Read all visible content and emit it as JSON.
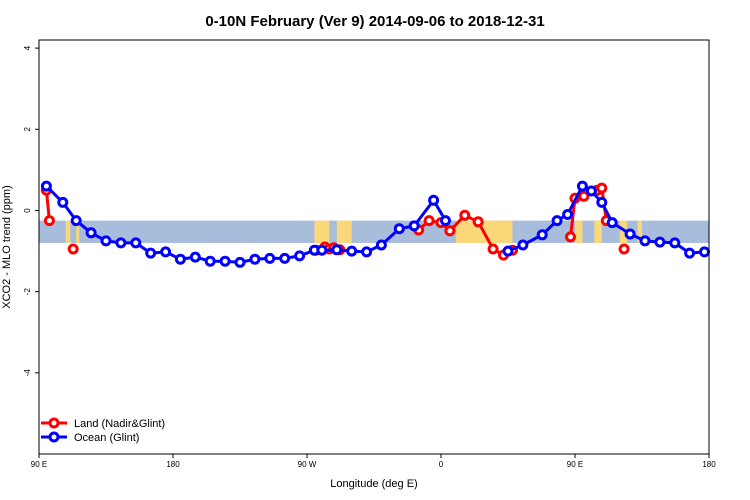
{
  "chart_data": {
    "type": "line",
    "title": "0-10N February (Ver 9)   2014-09-06 to 2018-12-31",
    "xlabel": "Longitude (deg E)",
    "ylabel": "XCO2 - MLO trend (ppm)",
    "x_ticks": [
      {
        "value": 90,
        "label": "90 E"
      },
      {
        "value": 180,
        "label": "180"
      },
      {
        "value": 270,
        "label": "90 W"
      },
      {
        "value": 360,
        "label": "0"
      },
      {
        "value": 450,
        "label": "90 E"
      },
      {
        "value": 540,
        "label": "180"
      }
    ],
    "y_ticks": [
      -4,
      -2,
      0,
      2,
      4
    ],
    "xlim": [
      90,
      540
    ],
    "ylim": [
      -6,
      4.2
    ],
    "legend_position": "bottom-left",
    "colors": {
      "land": "#ff0000",
      "ocean": "#0000ff",
      "map_ocean": "#a8bcdc",
      "map_land": "#fad87a"
    },
    "band": {
      "y_top": -0.25,
      "y_bottom": -0.8
    },
    "land_masses": [
      [
        108,
        111
      ],
      [
        115,
        117
      ],
      [
        275,
        285
      ],
      [
        290,
        300
      ],
      [
        370,
        408
      ],
      [
        450,
        455
      ],
      [
        463,
        468
      ],
      [
        480,
        485
      ],
      [
        492,
        495
      ]
    ],
    "series": [
      {
        "name": "Land (Nadir&Glint)",
        "color": "#ff0000",
        "segments": [
          [
            [
              95,
              0.5
            ],
            [
              97,
              -0.25
            ]
          ],
          [
            [
              113,
              -0.95
            ]
          ],
          [
            [
              276,
              -0.98
            ],
            [
              282,
              -0.9
            ],
            [
              285,
              -0.95
            ],
            [
              288,
              -0.92
            ],
            [
              292,
              -0.97
            ]
          ],
          [
            [
              345,
              -0.48
            ],
            [
              352,
              -0.25
            ],
            [
              360,
              -0.3
            ],
            [
              366,
              -0.5
            ],
            [
              376,
              -0.12
            ],
            [
              385,
              -0.28
            ],
            [
              395,
              -0.95
            ],
            [
              402,
              -1.1
            ],
            [
              408,
              -0.98
            ]
          ],
          [
            [
              447,
              -0.65
            ],
            [
              450,
              0.3
            ],
            [
              456,
              0.35
            ],
            [
              465,
              0.5
            ],
            [
              468,
              0.55
            ],
            [
              471,
              -0.25
            ]
          ],
          [
            [
              483,
              -0.95
            ]
          ]
        ]
      },
      {
        "name": "Ocean (Glint)",
        "color": "#0000ff",
        "segments": [
          [
            [
              95,
              0.6
            ],
            [
              106,
              0.2
            ],
            [
              115,
              -0.25
            ],
            [
              125,
              -0.55
            ],
            [
              135,
              -0.75
            ],
            [
              145,
              -0.8
            ],
            [
              155,
              -0.8
            ],
            [
              165,
              -1.05
            ],
            [
              175,
              -1.02
            ],
            [
              185,
              -1.2
            ],
            [
              195,
              -1.15
            ],
            [
              205,
              -1.25
            ],
            [
              215,
              -1.25
            ],
            [
              225,
              -1.28
            ],
            [
              235,
              -1.2
            ],
            [
              245,
              -1.18
            ],
            [
              255,
              -1.18
            ],
            [
              265,
              -1.12
            ],
            [
              275,
              -0.98
            ],
            [
              280,
              -0.98
            ],
            [
              290,
              -0.97
            ],
            [
              300,
              -1.0
            ],
            [
              310,
              -1.02
            ],
            [
              320,
              -0.85
            ],
            [
              332,
              -0.45
            ],
            [
              342,
              -0.38
            ],
            [
              355,
              0.25
            ],
            [
              363,
              -0.25
            ]
          ],
          [
            [
              405,
              -1.0
            ],
            [
              415,
              -0.85
            ],
            [
              428,
              -0.6
            ],
            [
              438,
              -0.25
            ],
            [
              445,
              -0.1
            ],
            [
              455,
              0.6
            ],
            [
              461,
              0.48
            ],
            [
              468,
              0.2
            ],
            [
              475,
              -0.3
            ],
            [
              487,
              -0.58
            ],
            [
              497,
              -0.75
            ],
            [
              507,
              -0.78
            ],
            [
              517,
              -0.8
            ],
            [
              527,
              -1.05
            ],
            [
              537,
              -1.02
            ]
          ]
        ]
      }
    ]
  }
}
